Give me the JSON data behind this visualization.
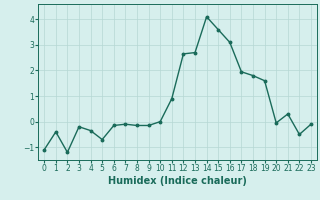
{
  "x": [
    0,
    1,
    2,
    3,
    4,
    5,
    6,
    7,
    8,
    9,
    10,
    11,
    12,
    13,
    14,
    15,
    16,
    17,
    18,
    19,
    20,
    21,
    22,
    23
  ],
  "y": [
    -1.1,
    -0.4,
    -1.2,
    -0.2,
    -0.35,
    -0.7,
    -0.15,
    -0.1,
    -0.15,
    -0.15,
    0.0,
    0.9,
    2.65,
    2.7,
    4.1,
    3.6,
    3.1,
    1.95,
    1.8,
    1.6,
    -0.05,
    0.3,
    -0.5,
    -0.1
  ],
  "line_color": "#1a6b5a",
  "marker": "o",
  "markersize": 1.8,
  "linewidth": 1.0,
  "xlabel": "Humidex (Indice chaleur)",
  "xlabel_fontsize": 7,
  "xlabel_color": "#1a6b5a",
  "xlabel_bold": true,
  "ylim": [
    -1.5,
    4.6
  ],
  "xlim": [
    -0.5,
    23.5
  ],
  "yticks": [
    -1,
    0,
    1,
    2,
    3,
    4
  ],
  "xtick_labels": [
    "0",
    "1",
    "2",
    "3",
    "4",
    "5",
    "6",
    "7",
    "8",
    "9",
    "10",
    "11",
    "12",
    "13",
    "14",
    "15",
    "16",
    "17",
    "18",
    "19",
    "20",
    "21",
    "22",
    "23"
  ],
  "background_color": "#d6efed",
  "grid_color": "#b5d8d4",
  "tick_color": "#1a6b5a",
  "tick_fontsize": 5.5,
  "grid_linewidth": 0.5
}
